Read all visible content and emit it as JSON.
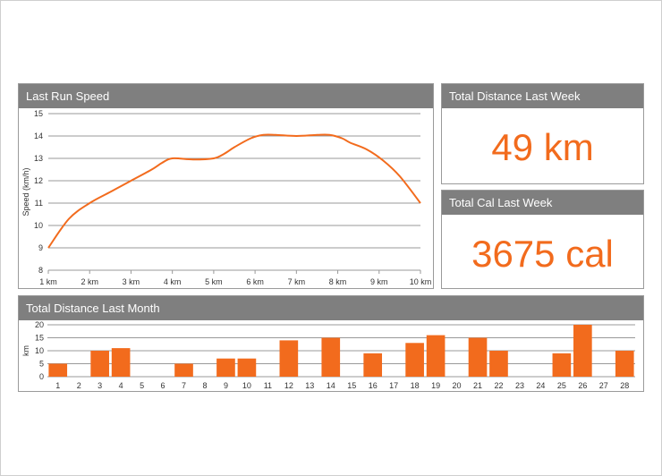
{
  "colors": {
    "accent": "#f26b1d",
    "header_bg": "#7f7f7f",
    "grid": "#999999"
  },
  "panels": {
    "speed": {
      "title": "Last Run Speed"
    },
    "distance_week": {
      "title": "Total Distance Last Week",
      "value": "49 km"
    },
    "cal_week": {
      "title": "Total Cal Last Week",
      "value": "3675 cal"
    },
    "distance_month": {
      "title": "Total Distance Last Month"
    }
  },
  "chart_data": [
    {
      "type": "line",
      "title": "Last Run Speed",
      "ylabel": "Speed (km/h)",
      "xlabel": "",
      "x_labels": [
        "1 km",
        "2 km",
        "3 km",
        "4 km",
        "5 km",
        "6 km",
        "7 km",
        "8 km",
        "9 km",
        "10 km"
      ],
      "x": [
        1,
        1.5,
        2,
        2.5,
        3,
        3.5,
        3.75,
        4,
        4.5,
        5,
        5.25,
        5.5,
        5.9,
        6.2,
        6.5,
        7,
        7.5,
        7.8,
        8.1,
        8.3,
        8.7,
        9.1,
        9.5,
        10
      ],
      "y": [
        9.0,
        10.3,
        11.0,
        11.5,
        12.0,
        12.5,
        12.8,
        13.0,
        12.95,
        13.0,
        13.2,
        13.5,
        13.9,
        14.05,
        14.05,
        14.0,
        14.05,
        14.05,
        13.9,
        13.7,
        13.4,
        12.9,
        12.2,
        11.0
      ],
      "ylim": [
        8,
        15
      ],
      "y_ticks": [
        8,
        9,
        10,
        11,
        12,
        13,
        14,
        15
      ],
      "grid": true
    },
    {
      "type": "bar",
      "title": "Total Distance Last Month",
      "ylabel": "km",
      "xlabel": "",
      "categories": [
        "1",
        "2",
        "3",
        "4",
        "5",
        "6",
        "7",
        "8",
        "9",
        "10",
        "11",
        "12",
        "13",
        "14",
        "15",
        "16",
        "17",
        "18",
        "19",
        "20",
        "21",
        "22",
        "23",
        "24",
        "25",
        "26",
        "27",
        "28"
      ],
      "values": [
        5,
        0,
        10,
        11,
        0,
        0,
        5,
        0,
        7,
        7,
        0,
        14,
        0,
        15,
        0,
        9,
        0,
        13,
        16,
        0,
        15,
        10,
        0,
        0,
        9,
        20,
        0,
        10
      ],
      "ylim": [
        0,
        20
      ],
      "y_ticks": [
        0,
        5,
        10,
        15,
        20
      ],
      "grid": true
    }
  ]
}
